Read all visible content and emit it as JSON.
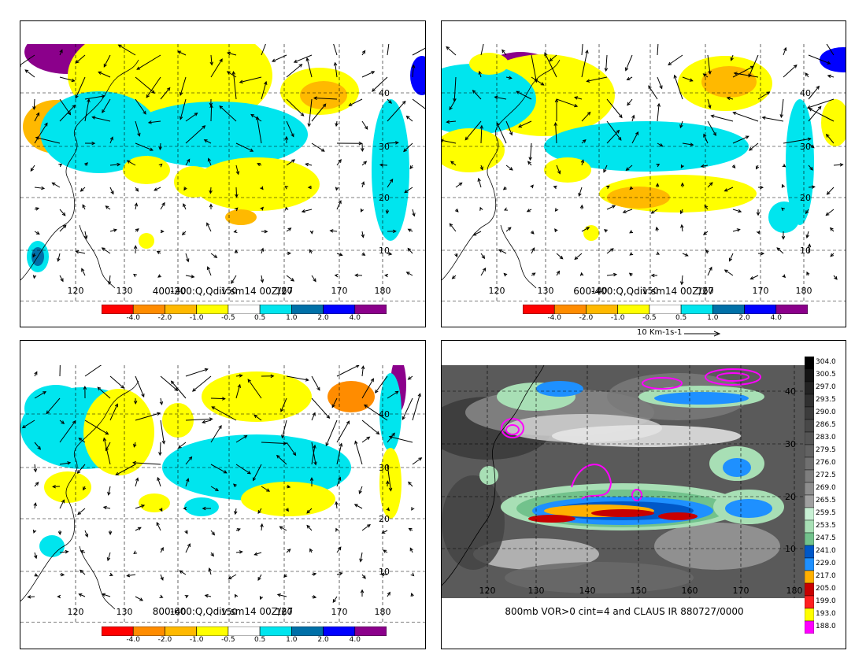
{
  "panels": [
    {
      "caption": "400-200:Q,Qdiv sm14 00Z/27"
    },
    {
      "caption": "600-400:Q,Qdiv sm14 00Z/27"
    },
    {
      "caption": "800-600:Q,Qdiv sm14 00Z/27"
    },
    {
      "caption": "800mb VOR>0 cint=4 and CLAUS IR 880727/0000"
    }
  ],
  "vector_scale_label": "10 Km-1s-1",
  "chart_data": [
    {
      "type": "heatmap",
      "title": "400-200:Q,Qdiv sm14 00Z/27",
      "x_ticks": [
        "120",
        "130",
        "140",
        "150",
        "160",
        "170",
        "180"
      ],
      "y_ticks": [
        "10",
        "20",
        "30",
        "40"
      ],
      "grid": true,
      "legend": "bottom",
      "colorbar_labels": [
        "-4.0",
        "-2.0",
        "-1.0",
        "-0.5",
        "0.5",
        "1.0",
        "2.0",
        "4.0"
      ],
      "colorbar_colors": [
        "#ff0000",
        "#ff8c00",
        "#ffb900",
        "#ffff00",
        "#ffffff",
        "#00e5ee",
        "#0070a8",
        "#0000ff",
        "#8b008b"
      ]
    },
    {
      "type": "heatmap",
      "title": "600-400:Q,Qdiv sm14 00Z/27",
      "x_ticks": [
        "120",
        "130",
        "140",
        "150",
        "160",
        "170",
        "180"
      ],
      "y_ticks": [
        "10",
        "20",
        "30",
        "40"
      ],
      "grid": true,
      "legend": "bottom",
      "colorbar_labels": [
        "-4.0",
        "-2.0",
        "-1.0",
        "-0.5",
        "0.5",
        "1.0",
        "2.0",
        "4.0"
      ],
      "colorbar_colors": [
        "#ff0000",
        "#ff8c00",
        "#ffb900",
        "#ffff00",
        "#ffffff",
        "#00e5ee",
        "#0070a8",
        "#0000ff",
        "#8b008b"
      ]
    },
    {
      "type": "heatmap",
      "title": "800-600:Q,Qdiv sm14 00Z/27",
      "x_ticks": [
        "120",
        "130",
        "140",
        "150",
        "160",
        "170",
        "180"
      ],
      "y_ticks": [
        "10",
        "20",
        "30",
        "40"
      ],
      "grid": true,
      "legend": "bottom",
      "colorbar_labels": [
        "-4.0",
        "-2.0",
        "-1.0",
        "-0.5",
        "0.5",
        "1.0",
        "2.0",
        "4.0"
      ],
      "colorbar_colors": [
        "#ff0000",
        "#ff8c00",
        "#ffb900",
        "#ffff00",
        "#ffffff",
        "#00e5ee",
        "#0070a8",
        "#0000ff",
        "#8b008b"
      ]
    },
    {
      "type": "heatmap",
      "title": "800mb VOR>0 cint=4 and CLAUS IR 880727/0000",
      "x_ticks": [
        "120",
        "130",
        "140",
        "150",
        "160",
        "170",
        "180"
      ],
      "y_ticks": [
        "10",
        "20",
        "30",
        "40"
      ],
      "grid": true,
      "legend": "right",
      "colorbar_labels": [
        "304.0",
        "300.5",
        "297.0",
        "293.5",
        "290.0",
        "286.5",
        "283.0",
        "279.5",
        "276.0",
        "272.5",
        "269.0",
        "265.5",
        "259.5",
        "253.5",
        "247.5",
        "241.0",
        "229.0",
        "217.0",
        "205.0",
        "199.0",
        "193.0",
        "188.0"
      ],
      "colorbar_colors": [
        "#000000",
        "#141414",
        "#232323",
        "#303030",
        "#3c3c3c",
        "#484848",
        "#555555",
        "#626262",
        "#707070",
        "#7e7e7e",
        "#8e8e8e",
        "#a0a0a0",
        "#c8f0d4",
        "#a8dfb5",
        "#72c28c",
        "#0058c8",
        "#1e90ff",
        "#ffb000",
        "#c80000",
        "#ff2020",
        "#ffff00",
        "#ff00ff"
      ]
    }
  ]
}
